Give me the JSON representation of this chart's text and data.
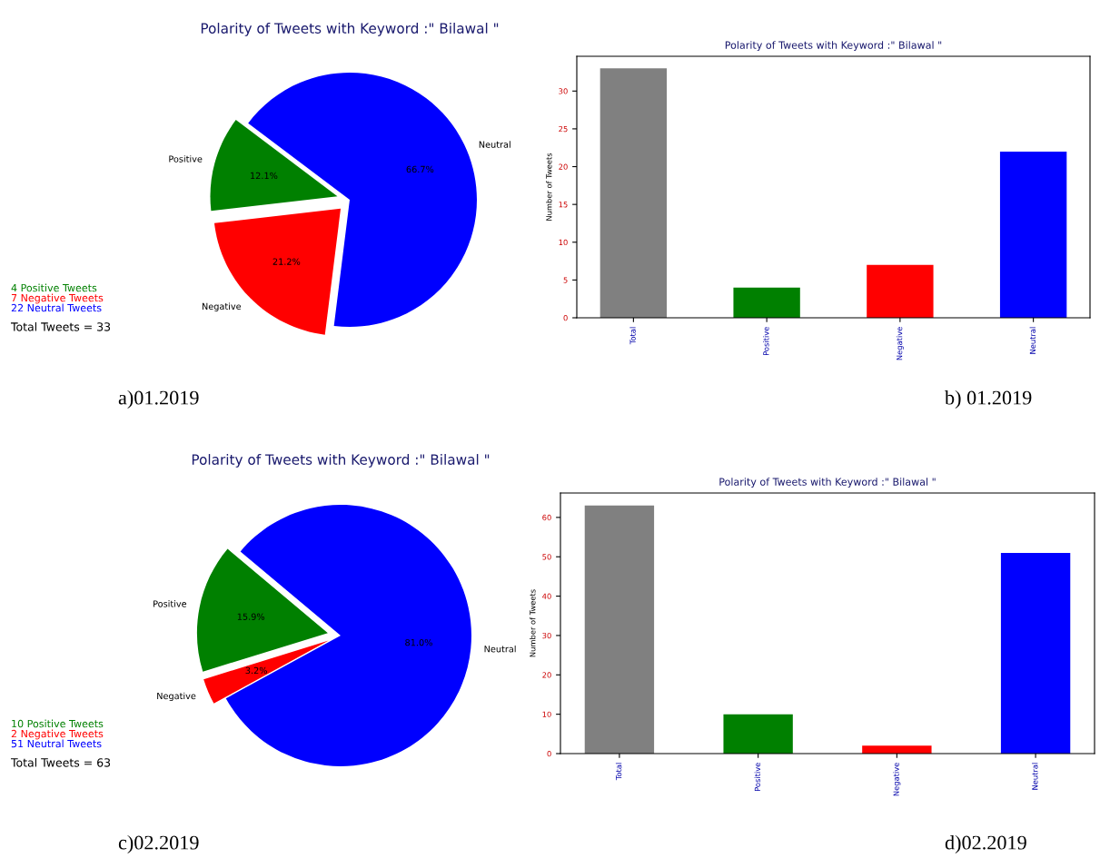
{
  "chart_data": [
    {
      "type": "pie",
      "title": "Polarity of Tweets with Keyword :\" Bilawal \"",
      "categories": [
        "Positive",
        "Negative",
        "Neutral"
      ],
      "values": [
        12.1,
        21.2,
        66.7
      ],
      "value_labels": [
        "12.1%",
        "21.2%",
        "66.7%"
      ],
      "colors": [
        "#008000",
        "#ff0000",
        "#0000ff"
      ],
      "annotations": [
        "4 Positive Tweets",
        "7 Negative Tweets",
        "22 Neutral Tweets",
        "Total Tweets = 33",
        "a)01.2019"
      ]
    },
    {
      "type": "bar",
      "title": "Polarity of Tweets with Keyword :\" Bilawal \"",
      "ylabel": "Number of Tweets",
      "categories": [
        "Total",
        "Positive",
        "Negative",
        "Neutral"
      ],
      "values": [
        33,
        4,
        7,
        22
      ],
      "colors": [
        "#808080",
        "#008000",
        "#ff0000",
        "#0000ff"
      ],
      "ylim": [
        0,
        34.6
      ],
      "yticks": [
        0,
        5,
        10,
        15,
        20,
        25,
        30
      ],
      "annotations": [
        "b) 01.2019"
      ]
    },
    {
      "type": "pie",
      "title": "Polarity of Tweets with Keyword :\" Bilawal \"",
      "categories": [
        "Positive",
        "Negative",
        "Neutral"
      ],
      "values": [
        15.9,
        3.2,
        81.0
      ],
      "value_labels": [
        "15.9%",
        "3.2%",
        "81.0%"
      ],
      "colors": [
        "#008000",
        "#ff0000",
        "#0000ff"
      ],
      "annotations": [
        "10 Positive Tweets",
        "2 Negative Tweets",
        "51 Neutral Tweets",
        "Total Tweets = 63",
        "c)02.2019"
      ]
    },
    {
      "type": "bar",
      "title": "Polarity of Tweets with Keyword :\" Bilawal \"",
      "ylabel": "Number of Tweets",
      "categories": [
        "Total",
        "Positive",
        "Negative",
        "Neutral"
      ],
      "values": [
        63,
        10,
        2,
        51
      ],
      "colors": [
        "#808080",
        "#008000",
        "#ff0000",
        "#0000ff"
      ],
      "ylim": [
        0,
        66.2
      ],
      "yticks": [
        0,
        10,
        20,
        30,
        40,
        50,
        60
      ],
      "annotations": [
        "d)02.2019"
      ]
    }
  ]
}
